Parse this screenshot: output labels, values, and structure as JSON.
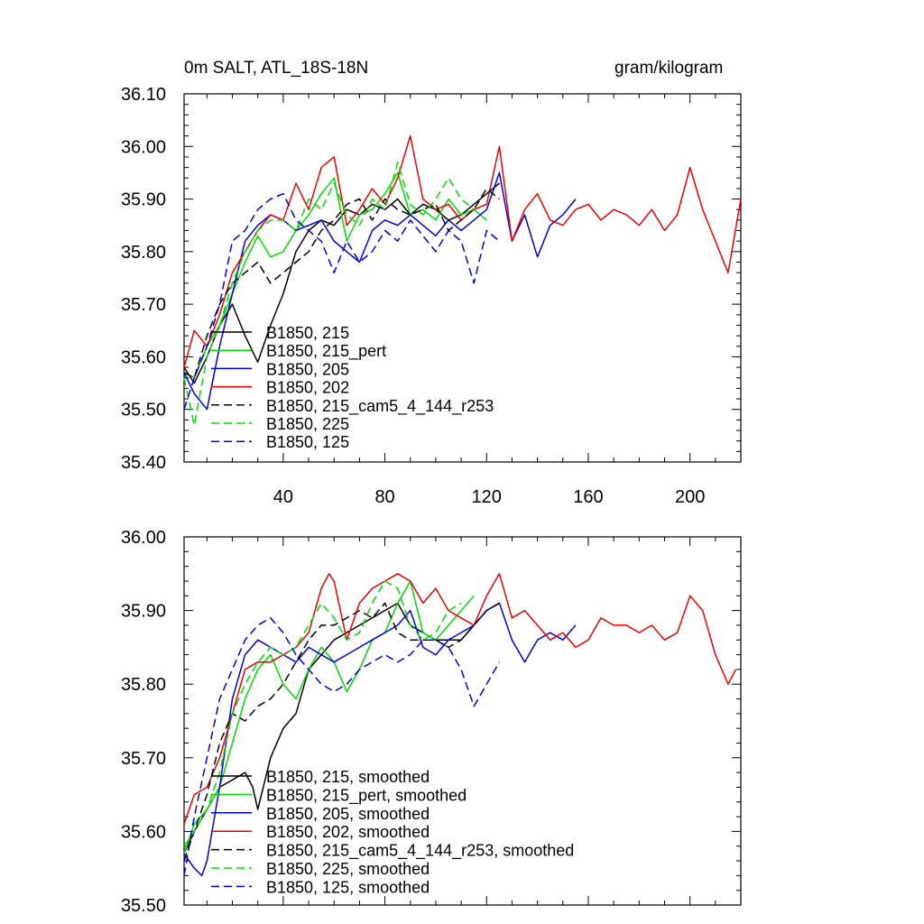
{
  "header": {
    "title_left": "0m SALT, ATL_18S-18N",
    "title_right": "gram/kilogram"
  },
  "chart_data": [
    {
      "type": "line",
      "xlim": [
        1,
        220
      ],
      "ylim": [
        35.4,
        36.1
      ],
      "xticks": [
        40,
        80,
        120,
        160,
        200
      ],
      "yticks": [
        35.4,
        35.5,
        35.6,
        35.7,
        35.8,
        35.9,
        36.0,
        36.1
      ],
      "ytick_labels": [
        "35.40",
        "35.50",
        "35.60",
        "35.70",
        "35.80",
        "35.90",
        "36.00",
        "36.10"
      ],
      "legend_position": "lower-left",
      "series": [
        {
          "name": "B1850, 215",
          "color": "#000000",
          "dash": "solid",
          "x": [
            1,
            5,
            10,
            15,
            20,
            25,
            30,
            35,
            40,
            45,
            50,
            55,
            60,
            65,
            70,
            75,
            80,
            85,
            90,
            95,
            100,
            105,
            110,
            115,
            120,
            125
          ],
          "y": [
            35.58,
            35.55,
            35.6,
            35.66,
            35.7,
            35.64,
            35.59,
            35.66,
            35.72,
            35.8,
            35.84,
            35.86,
            35.85,
            35.88,
            35.87,
            35.89,
            35.88,
            35.9,
            35.87,
            35.89,
            35.88,
            35.86,
            35.87,
            35.89,
            35.91,
            35.93
          ]
        },
        {
          "name": "B1850, 215_pert",
          "color": "#00dd00",
          "dash": "solid",
          "x": [
            1,
            5,
            10,
            15,
            20,
            25,
            30,
            35,
            40,
            45,
            50,
            55,
            60,
            65,
            70,
            75,
            80,
            85,
            90,
            95,
            100,
            105,
            110,
            115,
            120
          ],
          "y": [
            35.57,
            35.56,
            35.62,
            35.66,
            35.72,
            35.78,
            35.83,
            35.79,
            35.8,
            35.84,
            35.87,
            35.91,
            35.94,
            35.82,
            35.87,
            35.88,
            35.91,
            35.95,
            35.87,
            35.88,
            35.86,
            35.9,
            35.87,
            35.88,
            35.86
          ]
        },
        {
          "name": "B1850, 205",
          "color": "#0000dd",
          "dash": "solid",
          "x": [
            1,
            5,
            10,
            15,
            20,
            25,
            30,
            35,
            40,
            45,
            50,
            55,
            60,
            65,
            70,
            75,
            80,
            85,
            90,
            95,
            100,
            105,
            110,
            115,
            120,
            125,
            130,
            135,
            140,
            145,
            150,
            155
          ],
          "y": [
            35.57,
            35.53,
            35.5,
            35.62,
            35.72,
            35.82,
            35.85,
            35.87,
            35.86,
            35.84,
            35.85,
            35.86,
            35.82,
            35.8,
            35.78,
            35.84,
            35.86,
            35.85,
            35.87,
            35.85,
            35.83,
            35.86,
            35.84,
            35.86,
            35.88,
            35.95,
            35.82,
            35.87,
            35.79,
            35.85,
            35.87,
            35.9
          ]
        },
        {
          "name": "B1850, 202",
          "color": "#ee0000",
          "dash": "solid",
          "x": [
            1,
            5,
            10,
            15,
            20,
            25,
            30,
            35,
            40,
            45,
            50,
            55,
            60,
            65,
            70,
            75,
            80,
            85,
            90,
            95,
            100,
            105,
            110,
            115,
            120,
            125,
            130,
            135,
            140,
            145,
            150,
            155,
            160,
            165,
            170,
            175,
            180,
            185,
            190,
            195,
            200,
            205,
            210,
            215,
            220
          ],
          "y": [
            35.58,
            35.65,
            35.62,
            35.68,
            35.76,
            35.8,
            35.84,
            35.87,
            35.86,
            35.93,
            35.88,
            35.96,
            35.98,
            35.85,
            35.88,
            35.92,
            35.89,
            35.94,
            36.02,
            35.9,
            35.88,
            35.89,
            35.86,
            35.88,
            35.89,
            36.0,
            35.82,
            35.88,
            35.91,
            35.86,
            35.85,
            35.88,
            35.89,
            35.86,
            35.88,
            35.87,
            35.85,
            35.88,
            35.84,
            35.87,
            35.96,
            35.88,
            35.82,
            35.76,
            35.9
          ]
        },
        {
          "name": "B1850, 215_cam5_4_144_r253",
          "color": "#000000",
          "dash": "dashed",
          "x": [
            1,
            5,
            10,
            15,
            20,
            25,
            30,
            35,
            40,
            45,
            50,
            55,
            60,
            65,
            70,
            75,
            80,
            85,
            90,
            95,
            100,
            105,
            110,
            115,
            120,
            125
          ],
          "y": [
            35.57,
            35.56,
            35.64,
            35.7,
            35.74,
            35.76,
            35.78,
            35.74,
            35.76,
            35.78,
            35.8,
            35.84,
            35.86,
            35.89,
            35.9,
            35.86,
            35.9,
            35.88,
            35.87,
            35.88,
            35.89,
            35.84,
            35.86,
            35.88,
            35.92,
            35.9
          ]
        },
        {
          "name": "B1850, 225",
          "color": "#00dd00",
          "dash": "dashed",
          "x": [
            1,
            5,
            10,
            15,
            20,
            25,
            30,
            35,
            40,
            45,
            50,
            55,
            60,
            65,
            70,
            75,
            80,
            85,
            90,
            95,
            100,
            105,
            110,
            115
          ],
          "y": [
            35.56,
            35.47,
            35.6,
            35.66,
            35.74,
            35.8,
            35.84,
            35.86,
            35.86,
            35.84,
            35.9,
            35.88,
            35.93,
            35.87,
            35.85,
            35.9,
            35.88,
            35.97,
            35.89,
            35.87,
            35.9,
            35.94,
            35.9,
            35.88
          ]
        },
        {
          "name": "B1850, 125",
          "color": "#0000dd",
          "dash": "dashed",
          "x": [
            1,
            5,
            10,
            15,
            20,
            25,
            30,
            35,
            40,
            45,
            50,
            55,
            60,
            65,
            70,
            75,
            80,
            85,
            90,
            95,
            100,
            105,
            110,
            115,
            120,
            125
          ],
          "y": [
            35.5,
            35.56,
            35.62,
            35.7,
            35.82,
            35.84,
            35.88,
            35.9,
            35.91,
            35.86,
            35.84,
            35.82,
            35.76,
            35.82,
            35.78,
            35.8,
            35.84,
            35.82,
            35.86,
            35.83,
            35.8,
            35.84,
            35.82,
            35.74,
            35.84,
            35.82
          ]
        }
      ]
    },
    {
      "type": "line",
      "xlim": [
        1,
        220
      ],
      "ylim": [
        35.5,
        36.0
      ],
      "xticks": [
        40,
        80,
        120,
        160,
        200
      ],
      "yticks": [
        35.5,
        35.6,
        35.7,
        35.8,
        35.9,
        36.0
      ],
      "ytick_labels": [
        "35.50",
        "35.60",
        "35.70",
        "35.80",
        "35.90",
        "36.00"
      ],
      "legend_position": "lower-left",
      "series": [
        {
          "name": "B1850, 215, smoothed",
          "color": "#000000",
          "dash": "solid",
          "x": [
            1,
            5,
            10,
            15,
            20,
            25,
            28,
            30,
            35,
            40,
            45,
            50,
            55,
            60,
            65,
            70,
            75,
            80,
            85,
            90,
            95,
            100,
            105,
            110,
            115,
            120,
            125
          ],
          "y": [
            35.57,
            35.6,
            35.63,
            35.66,
            35.67,
            35.68,
            35.66,
            35.63,
            35.7,
            35.74,
            35.76,
            35.82,
            35.84,
            35.86,
            35.87,
            35.88,
            35.89,
            35.9,
            35.91,
            35.88,
            35.87,
            35.86,
            35.86,
            35.86,
            35.88,
            35.9,
            35.91
          ]
        },
        {
          "name": "B1850, 215_pert, smoothed",
          "color": "#00dd00",
          "dash": "solid",
          "x": [
            1,
            5,
            10,
            15,
            20,
            25,
            30,
            35,
            40,
            45,
            50,
            55,
            60,
            65,
            70,
            75,
            80,
            85,
            90,
            95,
            100,
            105,
            110,
            115
          ],
          "y": [
            35.57,
            35.61,
            35.63,
            35.66,
            35.72,
            35.78,
            35.82,
            35.84,
            35.8,
            35.78,
            35.82,
            35.85,
            35.83,
            35.79,
            35.82,
            35.86,
            35.87,
            35.91,
            35.94,
            35.87,
            35.86,
            35.88,
            35.9,
            35.92
          ]
        },
        {
          "name": "B1850, 205, smoothed",
          "color": "#0000dd",
          "dash": "solid",
          "x": [
            1,
            5,
            8,
            10,
            12,
            15,
            20,
            25,
            30,
            35,
            40,
            45,
            50,
            55,
            60,
            65,
            70,
            75,
            80,
            85,
            90,
            95,
            100,
            105,
            110,
            115,
            120,
            125,
            130,
            135,
            140,
            145,
            150,
            155
          ],
          "y": [
            35.57,
            35.55,
            35.54,
            35.56,
            35.6,
            35.66,
            35.78,
            35.84,
            35.86,
            35.85,
            35.84,
            35.83,
            35.85,
            35.84,
            35.83,
            35.84,
            35.85,
            35.86,
            35.87,
            35.88,
            35.9,
            35.85,
            35.84,
            35.86,
            35.87,
            35.88,
            35.9,
            35.91,
            35.86,
            35.83,
            35.86,
            35.87,
            35.86,
            35.88
          ]
        },
        {
          "name": "B1850, 202, smoothed",
          "color": "#ee0000",
          "dash": "solid",
          "x": [
            1,
            5,
            10,
            15,
            20,
            25,
            30,
            35,
            40,
            45,
            50,
            55,
            58,
            60,
            65,
            70,
            75,
            80,
            85,
            90,
            95,
            100,
            105,
            110,
            115,
            120,
            125,
            130,
            135,
            140,
            145,
            150,
            155,
            160,
            165,
            170,
            175,
            180,
            185,
            190,
            195,
            200,
            205,
            210,
            215,
            218
          ],
          "y": [
            35.61,
            35.65,
            35.66,
            35.7,
            35.76,
            35.82,
            35.83,
            35.83,
            35.84,
            35.85,
            35.87,
            35.93,
            35.95,
            35.94,
            35.86,
            35.91,
            35.93,
            35.94,
            35.95,
            35.94,
            35.91,
            35.93,
            35.9,
            35.89,
            35.88,
            35.92,
            35.95,
            35.89,
            35.9,
            35.88,
            35.86,
            35.87,
            35.85,
            35.86,
            35.89,
            35.88,
            35.88,
            35.87,
            35.88,
            35.86,
            35.87,
            35.92,
            35.9,
            35.84,
            35.8,
            35.82
          ]
        },
        {
          "name": "B1850, 215_cam5_4_144_r253, smoothed",
          "color": "#000000",
          "dash": "dashed",
          "x": [
            1,
            5,
            10,
            15,
            20,
            25,
            30,
            35,
            40,
            45,
            50,
            55,
            60,
            65,
            70,
            75,
            80,
            85,
            90,
            95,
            100,
            105,
            110,
            115,
            120,
            125
          ],
          "y": [
            35.56,
            35.6,
            35.65,
            35.72,
            35.76,
            35.75,
            35.77,
            35.78,
            35.8,
            35.83,
            35.86,
            35.88,
            35.88,
            35.89,
            35.9,
            35.89,
            35.91,
            35.87,
            35.86,
            35.86,
            35.86,
            35.85,
            35.86,
            35.88,
            35.9,
            35.91
          ]
        },
        {
          "name": "B1850, 225, smoothed",
          "color": "#00dd00",
          "dash": "dashed",
          "x": [
            1,
            5,
            10,
            15,
            20,
            25,
            30,
            35,
            40,
            45,
            50,
            55,
            60,
            65,
            70,
            75,
            80,
            85,
            90,
            95,
            100,
            105,
            110
          ],
          "y": [
            35.58,
            35.6,
            35.63,
            35.68,
            35.76,
            35.8,
            35.83,
            35.85,
            35.84,
            35.85,
            35.88,
            35.91,
            35.89,
            35.86,
            35.87,
            35.91,
            35.94,
            35.93,
            35.88,
            35.86,
            35.87,
            35.9,
            35.91
          ]
        },
        {
          "name": "B1850, 125, smoothed",
          "color": "#0000dd",
          "dash": "dashed",
          "x": [
            1,
            5,
            10,
            15,
            20,
            25,
            30,
            35,
            40,
            45,
            50,
            55,
            60,
            65,
            70,
            75,
            80,
            85,
            90,
            95,
            100,
            105,
            110,
            115,
            120,
            125
          ],
          "y": [
            35.54,
            35.62,
            35.7,
            35.78,
            35.82,
            35.86,
            35.88,
            35.89,
            35.87,
            35.84,
            35.82,
            35.8,
            35.79,
            35.8,
            35.82,
            35.83,
            35.84,
            35.83,
            35.84,
            35.86,
            35.86,
            35.85,
            35.82,
            35.77,
            35.8,
            35.83
          ]
        }
      ]
    }
  ]
}
